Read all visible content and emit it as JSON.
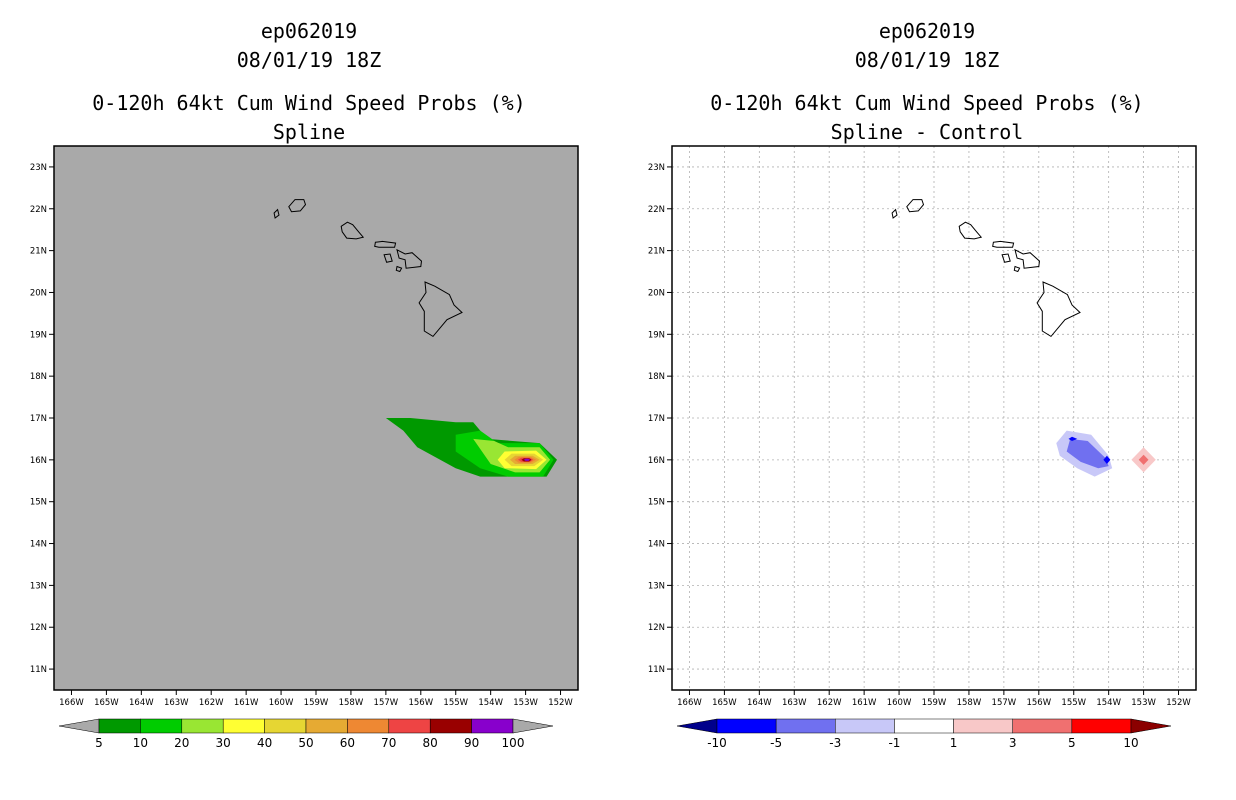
{
  "chart_data": [
    {
      "type": "contour",
      "title_lines": [
        "ep062019",
        "08/01/19 18Z",
        "0-120h 64kt Cum Wind Speed Probs (%)",
        "Spline"
      ],
      "background": "#a9a9a9",
      "grid": false,
      "xlim": [
        -166.5,
        -151.5
      ],
      "ylim": [
        10.5,
        23.5
      ],
      "x_ticks": [
        -166,
        -165,
        -164,
        -163,
        -162,
        -161,
        -160,
        -159,
        -158,
        -157,
        -156,
        -155,
        -154,
        -153,
        -152
      ],
      "x_tick_labels": [
        "166W",
        "165W",
        "164W",
        "163W",
        "162W",
        "161W",
        "160W",
        "159W",
        "158W",
        "157W",
        "156W",
        "155W",
        "154W",
        "153W",
        "152W"
      ],
      "y_ticks": [
        11,
        12,
        13,
        14,
        15,
        16,
        17,
        18,
        19,
        20,
        21,
        22,
        23
      ],
      "y_tick_labels": [
        "11N",
        "12N",
        "13N",
        "14N",
        "15N",
        "16N",
        "17N",
        "18N",
        "19N",
        "20N",
        "21N",
        "22N",
        "23N"
      ],
      "colorbar": {
        "labels": [
          "5",
          "10",
          "20",
          "30",
          "40",
          "50",
          "60",
          "70",
          "80",
          "90",
          "100"
        ],
        "colors": [
          "#009900",
          "#00cc00",
          "#99e633",
          "#ffff33",
          "#e6d633",
          "#e6aa33",
          "#ee8833",
          "#ee4444",
          "#990000",
          "#8800cc"
        ],
        "under_color": "#a9a9a9",
        "over_color": "#a9a9a9"
      },
      "contours": [
        {
          "level": 5,
          "color": "#009900",
          "points": [
            [
              -157.0,
              17.0
            ],
            [
              -156.3,
              17.0
            ],
            [
              -155.0,
              16.9
            ],
            [
              -154.5,
              16.9
            ],
            [
              -154.1,
              16.5
            ],
            [
              -152.6,
              16.4
            ],
            [
              -152.1,
              16.0
            ],
            [
              -152.4,
              15.6
            ],
            [
              -154.3,
              15.6
            ],
            [
              -155.0,
              15.8
            ],
            [
              -156.1,
              16.3
            ],
            [
              -156.5,
              16.7
            ]
          ]
        },
        {
          "level": 10,
          "color": "#00cc00",
          "points": [
            [
              -155.0,
              16.6
            ],
            [
              -154.3,
              16.7
            ],
            [
              -153.8,
              16.4
            ],
            [
              -152.6,
              16.4
            ],
            [
              -152.2,
              16.0
            ],
            [
              -152.5,
              15.6
            ],
            [
              -153.5,
              15.6
            ],
            [
              -154.3,
              15.8
            ],
            [
              -155.0,
              16.2
            ]
          ]
        },
        {
          "level": 20,
          "color": "#99e633",
          "points": [
            [
              -154.5,
              16.5
            ],
            [
              -153.9,
              16.45
            ],
            [
              -153.5,
              16.3
            ],
            [
              -152.6,
              16.3
            ],
            [
              -152.3,
              16.0
            ],
            [
              -152.6,
              15.7
            ],
            [
              -153.3,
              15.7
            ],
            [
              -154.0,
              15.9
            ]
          ]
        },
        {
          "level": 30,
          "color": "#ffff33",
          "points": [
            [
              -153.6,
              16.2
            ],
            [
              -152.7,
              16.22
            ],
            [
              -152.4,
              16.0
            ],
            [
              -152.7,
              15.78
            ],
            [
              -153.6,
              15.8
            ],
            [
              -153.8,
              16.0
            ]
          ]
        },
        {
          "level": 40,
          "color": "#e6d633",
          "points": [
            [
              -153.4,
              16.15
            ],
            [
              -152.75,
              16.15
            ],
            [
              -152.5,
              16.0
            ],
            [
              -152.75,
              15.85
            ],
            [
              -153.4,
              15.85
            ],
            [
              -153.6,
              16.0
            ]
          ]
        },
        {
          "level": 50,
          "color": "#e6aa33",
          "points": [
            [
              -153.3,
              16.1
            ],
            [
              -152.8,
              16.1
            ],
            [
              -152.6,
              16.0
            ],
            [
              -152.8,
              15.9
            ],
            [
              -153.3,
              15.9
            ],
            [
              -153.45,
              16.0
            ]
          ]
        },
        {
          "level": 60,
          "color": "#ee8833",
          "points": [
            [
              -153.2,
              16.07
            ],
            [
              -152.85,
              16.07
            ],
            [
              -152.7,
              16.0
            ],
            [
              -152.85,
              15.93
            ],
            [
              -153.2,
              15.93
            ],
            [
              -153.32,
              16.0
            ]
          ]
        },
        {
          "level": 70,
          "color": "#ee4444",
          "points": [
            [
              -153.12,
              16.05
            ],
            [
              -152.88,
              16.05
            ],
            [
              -152.78,
              16.0
            ],
            [
              -152.88,
              15.95
            ],
            [
              -153.12,
              15.95
            ],
            [
              -153.22,
              16.0
            ]
          ]
        },
        {
          "level": 80,
          "color": "#990000",
          "points": [
            [
              -153.05,
              16.04
            ],
            [
              -152.9,
              16.04
            ],
            [
              -152.83,
              16.0
            ],
            [
              -152.9,
              15.96
            ],
            [
              -153.05,
              15.96
            ],
            [
              -153.12,
              16.0
            ]
          ]
        },
        {
          "level": 90,
          "color": "#8800cc",
          "points": [
            [
              -153.0,
              16.025
            ],
            [
              -152.92,
              16.025
            ],
            [
              -152.87,
              16.0
            ],
            [
              -152.92,
              15.975
            ],
            [
              -153.0,
              15.975
            ],
            [
              -153.05,
              16.0
            ]
          ]
        }
      ]
    },
    {
      "type": "contour",
      "title_lines": [
        "ep062019",
        "08/01/19 18Z",
        "0-120h 64kt Cum Wind Speed Probs (%)",
        "Spline - Control"
      ],
      "background": "#ffffff",
      "grid": true,
      "xlim": [
        -166.5,
        -151.5
      ],
      "ylim": [
        10.5,
        23.5
      ],
      "x_ticks": [
        -166,
        -165,
        -164,
        -163,
        -162,
        -161,
        -160,
        -159,
        -158,
        -157,
        -156,
        -155,
        -154,
        -153,
        -152
      ],
      "x_tick_labels": [
        "166W",
        "165W",
        "164W",
        "163W",
        "162W",
        "161W",
        "160W",
        "159W",
        "158W",
        "157W",
        "156W",
        "155W",
        "154W",
        "153W",
        "152W"
      ],
      "y_ticks": [
        11,
        12,
        13,
        14,
        15,
        16,
        17,
        18,
        19,
        20,
        21,
        22,
        23
      ],
      "y_tick_labels": [
        "11N",
        "12N",
        "13N",
        "14N",
        "15N",
        "16N",
        "17N",
        "18N",
        "19N",
        "20N",
        "21N",
        "22N",
        "23N"
      ],
      "colorbar": {
        "labels": [
          "-10",
          "-5",
          "-3",
          "-1",
          "1",
          "3",
          "5",
          "10"
        ],
        "colors": [
          "#0000ff",
          "#7070f0",
          "#c8c8f8",
          "#ffffff",
          "#f8c8c8",
          "#f07070",
          "#ff0000"
        ],
        "under_color": "#00008b",
        "over_color": "#8b0000"
      },
      "contours": [
        {
          "level": -1,
          "color": "#c8c8f8",
          "points": [
            [
              -155.2,
              16.7
            ],
            [
              -154.5,
              16.6
            ],
            [
              -154.0,
              16.1
            ],
            [
              -153.9,
              15.8
            ],
            [
              -154.4,
              15.6
            ],
            [
              -154.9,
              15.8
            ],
            [
              -155.4,
              16.1
            ],
            [
              -155.5,
              16.4
            ]
          ]
        },
        {
          "level": -3,
          "color": "#7070f0",
          "points": [
            [
              -155.1,
              16.5
            ],
            [
              -154.6,
              16.45
            ],
            [
              -154.1,
              16.05
            ],
            [
              -154.0,
              15.85
            ],
            [
              -154.3,
              15.8
            ],
            [
              -154.8,
              15.95
            ],
            [
              -155.2,
              16.2
            ]
          ]
        },
        {
          "level": -5,
          "color": "#0000ff",
          "points": [
            [
              -155.05,
              16.55
            ],
            [
              -154.9,
              16.5
            ],
            [
              -155.05,
              16.45
            ],
            [
              -155.15,
              16.5
            ]
          ]
        },
        {
          "level": -5,
          "color": "#0000ff",
          "points": [
            [
              -154.05,
              16.1
            ],
            [
              -153.95,
              16.0
            ],
            [
              -154.05,
              15.9
            ],
            [
              -154.15,
              16.0
            ]
          ]
        },
        {
          "level": 1,
          "color": "#f8c8c8",
          "points": [
            [
              -153.0,
              16.3
            ],
            [
              -152.65,
              16.0
            ],
            [
              -153.0,
              15.7
            ],
            [
              -153.35,
              16.0
            ]
          ]
        },
        {
          "level": 3,
          "color": "#f07070",
          "points": [
            [
              -153.0,
              16.12
            ],
            [
              -152.86,
              16.0
            ],
            [
              -153.0,
              15.88
            ],
            [
              -153.14,
              16.0
            ]
          ]
        }
      ]
    }
  ]
}
